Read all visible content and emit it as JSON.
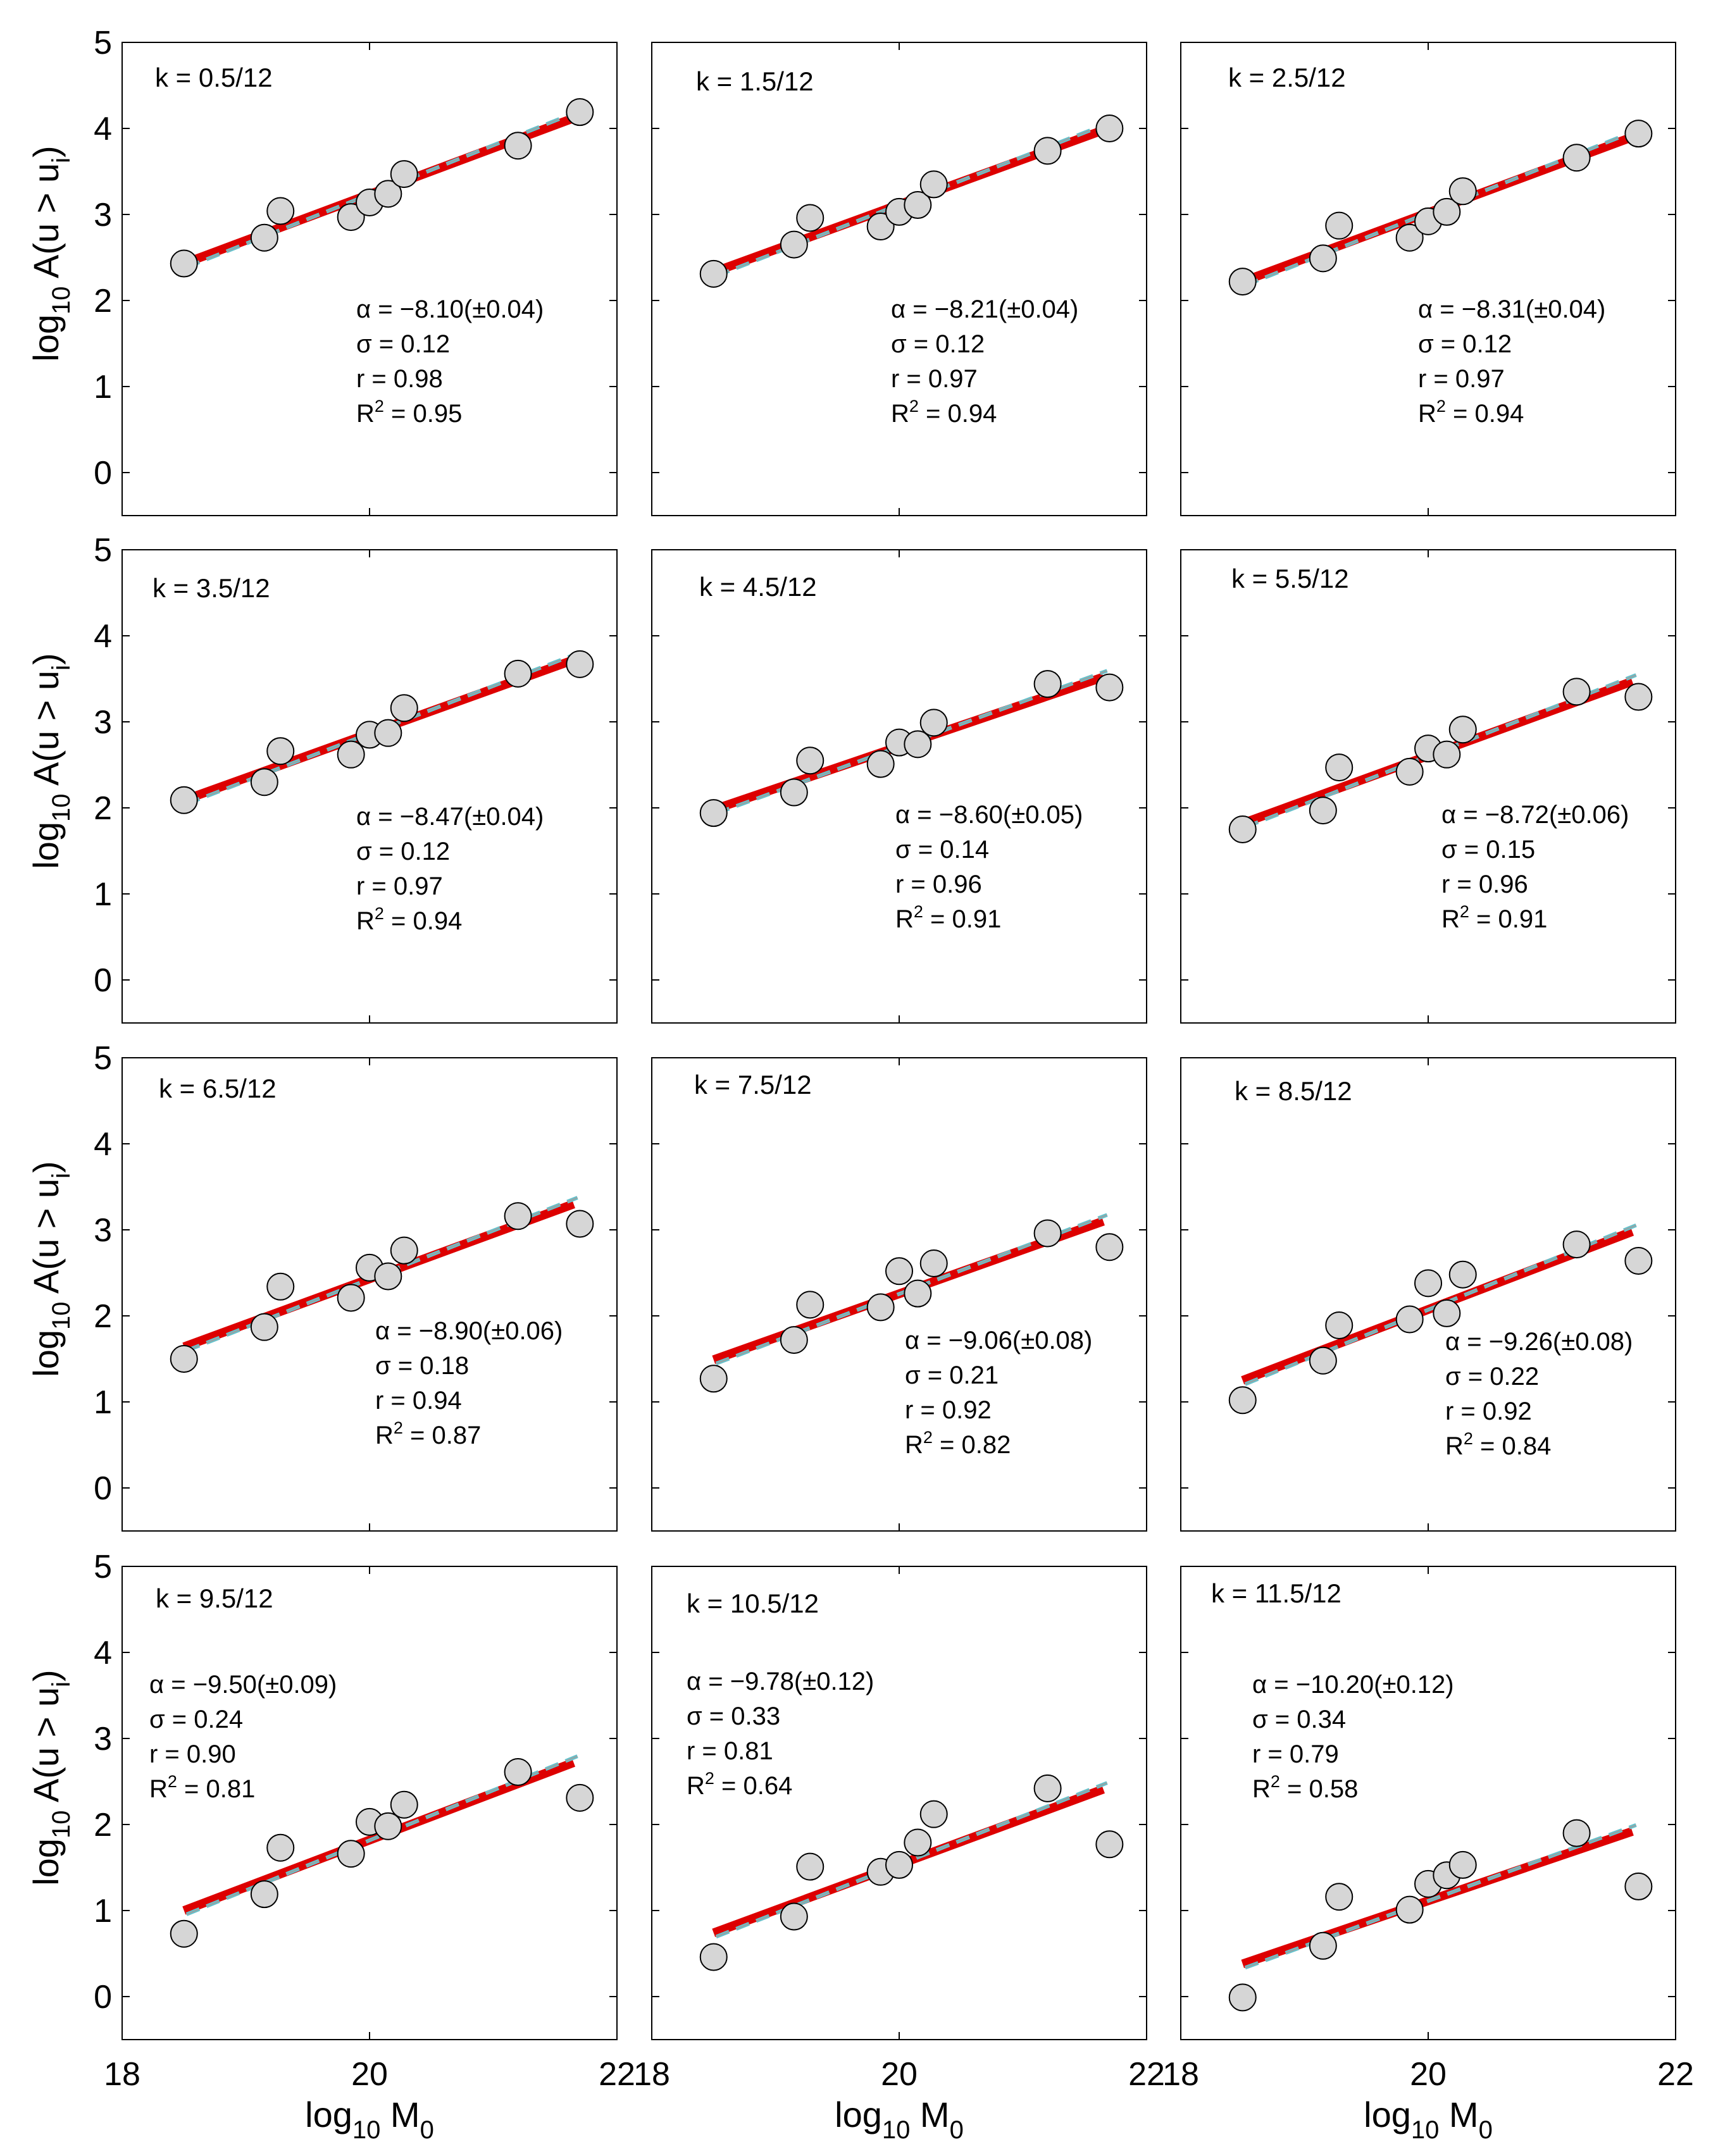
{
  "figure": {
    "ylabel_main": "log",
    "ylabel_sub": "10",
    "ylabel_rest": " A(u > u",
    "ylabel_rest_sub": "i",
    "ylabel_close": ")",
    "xlabel_main": "log",
    "xlabel_sub": "10",
    "xlabel_rest": " M",
    "xlabel_rest_sub": "0",
    "x_ticks": [
      18,
      20,
      22
    ],
    "y_ticks": [
      0,
      1,
      2,
      3,
      4,
      5
    ],
    "colors": {
      "points_fill": "#d6d6d6",
      "points_stroke": "#000000",
      "fit_line": "#dd0000",
      "dashed_line": "#66c2cc",
      "dashed_line_core": "#9aa0a0"
    }
  },
  "chart_data": [
    {
      "type": "scatter",
      "panel_label": "k = 0.5/12",
      "xlim": [
        18,
        22
      ],
      "ylim": [
        -0.5,
        5
      ],
      "x": [
        18.5,
        19.15,
        19.28,
        19.85,
        20.0,
        20.15,
        20.28,
        21.2,
        21.7
      ],
      "y": [
        2.43,
        2.73,
        3.04,
        2.97,
        3.14,
        3.24,
        3.47,
        3.8,
        4.19
      ],
      "fit": {
        "x": [
          18.5,
          21.65
        ],
        "y": [
          2.43,
          4.12
        ]
      },
      "alpha": "−8.10(±0.04)",
      "sigma": "0.12",
      "r": "0.98",
      "R2": "0.95"
    },
    {
      "type": "scatter",
      "panel_label": "k = 1.5/12",
      "xlim": [
        18,
        22
      ],
      "ylim": [
        -0.5,
        5
      ],
      "x": [
        18.5,
        19.15,
        19.28,
        19.85,
        20.0,
        20.15,
        20.28,
        21.2,
        21.7
      ],
      "y": [
        2.31,
        2.65,
        2.96,
        2.86,
        3.03,
        3.11,
        3.35,
        3.74,
        4.0
      ],
      "fit": {
        "x": [
          18.5,
          21.65
        ],
        "y": [
          2.33,
          3.98
        ]
      },
      "alpha": "−8.21(±0.04)",
      "sigma": "0.12",
      "r": "0.97",
      "R2": "0.94"
    },
    {
      "type": "scatter",
      "panel_label": "k = 2.5/12",
      "xlim": [
        18,
        22
      ],
      "ylim": [
        -0.5,
        5
      ],
      "x": [
        18.5,
        19.15,
        19.28,
        19.85,
        20.0,
        20.15,
        20.28,
        21.2,
        21.7
      ],
      "y": [
        2.22,
        2.49,
        2.87,
        2.73,
        2.92,
        3.03,
        3.27,
        3.66,
        3.94
      ],
      "fit": {
        "x": [
          18.5,
          21.65
        ],
        "y": [
          2.22,
          3.9
        ]
      },
      "alpha": "−8.31(±0.04)",
      "sigma": "0.12",
      "r": "0.97",
      "R2": "0.94"
    },
    {
      "type": "scatter",
      "panel_label": "k = 3.5/12",
      "xlim": [
        18,
        22
      ],
      "ylim": [
        -0.5,
        5
      ],
      "x": [
        18.5,
        19.15,
        19.28,
        19.85,
        20.0,
        20.15,
        20.28,
        21.2,
        21.7
      ],
      "y": [
        2.09,
        2.3,
        2.66,
        2.62,
        2.85,
        2.87,
        3.16,
        3.56,
        3.67
      ],
      "fit": {
        "x": [
          18.5,
          21.65
        ],
        "y": [
          2.09,
          3.72
        ]
      },
      "alpha": "−8.47(±0.04)",
      "sigma": "0.12",
      "r": "0.97",
      "R2": "0.94"
    },
    {
      "type": "scatter",
      "panel_label": "k = 4.5/12",
      "xlim": [
        18,
        22
      ],
      "ylim": [
        -0.5,
        5
      ],
      "x": [
        18.5,
        19.15,
        19.28,
        19.85,
        20.0,
        20.15,
        20.28,
        21.2,
        21.7
      ],
      "y": [
        1.94,
        2.18,
        2.55,
        2.51,
        2.76,
        2.74,
        2.99,
        3.44,
        3.4
      ],
      "fit": {
        "x": [
          18.5,
          21.65
        ],
        "y": [
          1.98,
          3.52
        ]
      },
      "alpha": "−8.60(±0.05)",
      "sigma": "0.14",
      "r": "0.96",
      "R2": "0.91"
    },
    {
      "type": "scatter",
      "panel_label": "k = 5.5/12",
      "xlim": [
        18,
        22
      ],
      "ylim": [
        -0.5,
        5
      ],
      "x": [
        18.5,
        19.15,
        19.28,
        19.85,
        20.0,
        20.15,
        20.28,
        21.2,
        21.7
      ],
      "y": [
        1.75,
        1.97,
        2.47,
        2.42,
        2.69,
        2.62,
        2.91,
        3.35,
        3.29
      ],
      "fit": {
        "x": [
          18.5,
          21.65
        ],
        "y": [
          1.82,
          3.47
        ]
      },
      "alpha": "−8.72(±0.06)",
      "sigma": "0.15",
      "r": "0.96",
      "R2": "0.91"
    },
    {
      "type": "scatter",
      "panel_label": "k = 6.5/12",
      "xlim": [
        18,
        22
      ],
      "ylim": [
        -0.5,
        5
      ],
      "x": [
        18.5,
        19.15,
        19.28,
        19.85,
        20.0,
        20.15,
        20.28,
        21.2,
        21.7
      ],
      "y": [
        1.5,
        1.87,
        2.34,
        2.21,
        2.56,
        2.46,
        2.76,
        3.16,
        3.07
      ],
      "fit": {
        "x": [
          18.5,
          21.65
        ],
        "y": [
          1.64,
          3.3
        ]
      },
      "alpha": "−8.90(±0.06)",
      "sigma": "0.18",
      "r": "0.94",
      "R2": "0.87"
    },
    {
      "type": "scatter",
      "panel_label": "k = 7.5/12",
      "xlim": [
        18,
        22
      ],
      "ylim": [
        -0.5,
        5
      ],
      "x": [
        18.5,
        19.15,
        19.28,
        19.85,
        20.0,
        20.15,
        20.28,
        21.2,
        21.7
      ],
      "y": [
        1.27,
        1.72,
        2.13,
        2.1,
        2.52,
        2.26,
        2.61,
        2.96,
        2.8
      ],
      "fit": {
        "x": [
          18.5,
          21.65
        ],
        "y": [
          1.49,
          3.1
        ]
      },
      "alpha": "−9.06(±0.08)",
      "sigma": "0.21",
      "r": "0.92",
      "R2": "0.82"
    },
    {
      "type": "scatter",
      "panel_label": "k = 8.5/12",
      "xlim": [
        18,
        22
      ],
      "ylim": [
        -0.5,
        5
      ],
      "x": [
        18.5,
        19.15,
        19.28,
        19.85,
        20.0,
        20.15,
        20.28,
        21.2,
        21.7
      ],
      "y": [
        1.02,
        1.48,
        1.89,
        1.96,
        2.38,
        2.03,
        2.48,
        2.83,
        2.64
      ],
      "fit": {
        "x": [
          18.5,
          21.65
        ],
        "y": [
          1.25,
          2.98
        ]
      },
      "alpha": "−9.26(±0.08)",
      "sigma": "0.22",
      "r": "0.92",
      "R2": "0.84"
    },
    {
      "type": "scatter",
      "panel_label": "k = 9.5/12",
      "xlim": [
        18,
        22
      ],
      "ylim": [
        -0.5,
        5
      ],
      "x": [
        18.5,
        19.15,
        19.28,
        19.85,
        20.0,
        20.15,
        20.28,
        21.2,
        21.7
      ],
      "y": [
        0.73,
        1.19,
        1.73,
        1.66,
        2.03,
        1.98,
        2.23,
        2.61,
        2.31
      ],
      "fit": {
        "x": [
          18.5,
          21.65
        ],
        "y": [
          1.0,
          2.72
        ]
      },
      "alpha": "−9.50(±0.09)",
      "sigma": "0.24",
      "r": "0.90",
      "R2": "0.81"
    },
    {
      "type": "scatter",
      "panel_label": "k = 10.5/12",
      "xlim": [
        18,
        22
      ],
      "ylim": [
        -0.5,
        5
      ],
      "x": [
        18.5,
        19.15,
        19.28,
        19.85,
        20.0,
        20.15,
        20.28,
        21.2,
        21.7
      ],
      "y": [
        0.46,
        0.93,
        1.51,
        1.45,
        1.53,
        1.79,
        2.12,
        2.42,
        1.77
      ],
      "fit": {
        "x": [
          18.5,
          21.65
        ],
        "y": [
          0.74,
          2.41
        ]
      },
      "alpha": "−9.78(±0.12)",
      "sigma": "0.33",
      "r": "0.81",
      "R2": "0.64"
    },
    {
      "type": "scatter",
      "panel_label": "k = 11.5/12",
      "xlim": [
        18,
        22
      ],
      "ylim": [
        -0.5,
        5
      ],
      "x": [
        18.5,
        19.15,
        19.28,
        19.85,
        20.0,
        20.15,
        20.28,
        21.2,
        21.7
      ],
      "y": [
        -0.01,
        0.59,
        1.16,
        1.01,
        1.31,
        1.41,
        1.53,
        1.9,
        1.28
      ],
      "fit": {
        "x": [
          18.5,
          21.65
        ],
        "y": [
          0.38,
          1.92
        ]
      },
      "alpha": "−10.20(±0.12)",
      "sigma": "0.34",
      "r": "0.79",
      "R2": "0.58"
    }
  ]
}
